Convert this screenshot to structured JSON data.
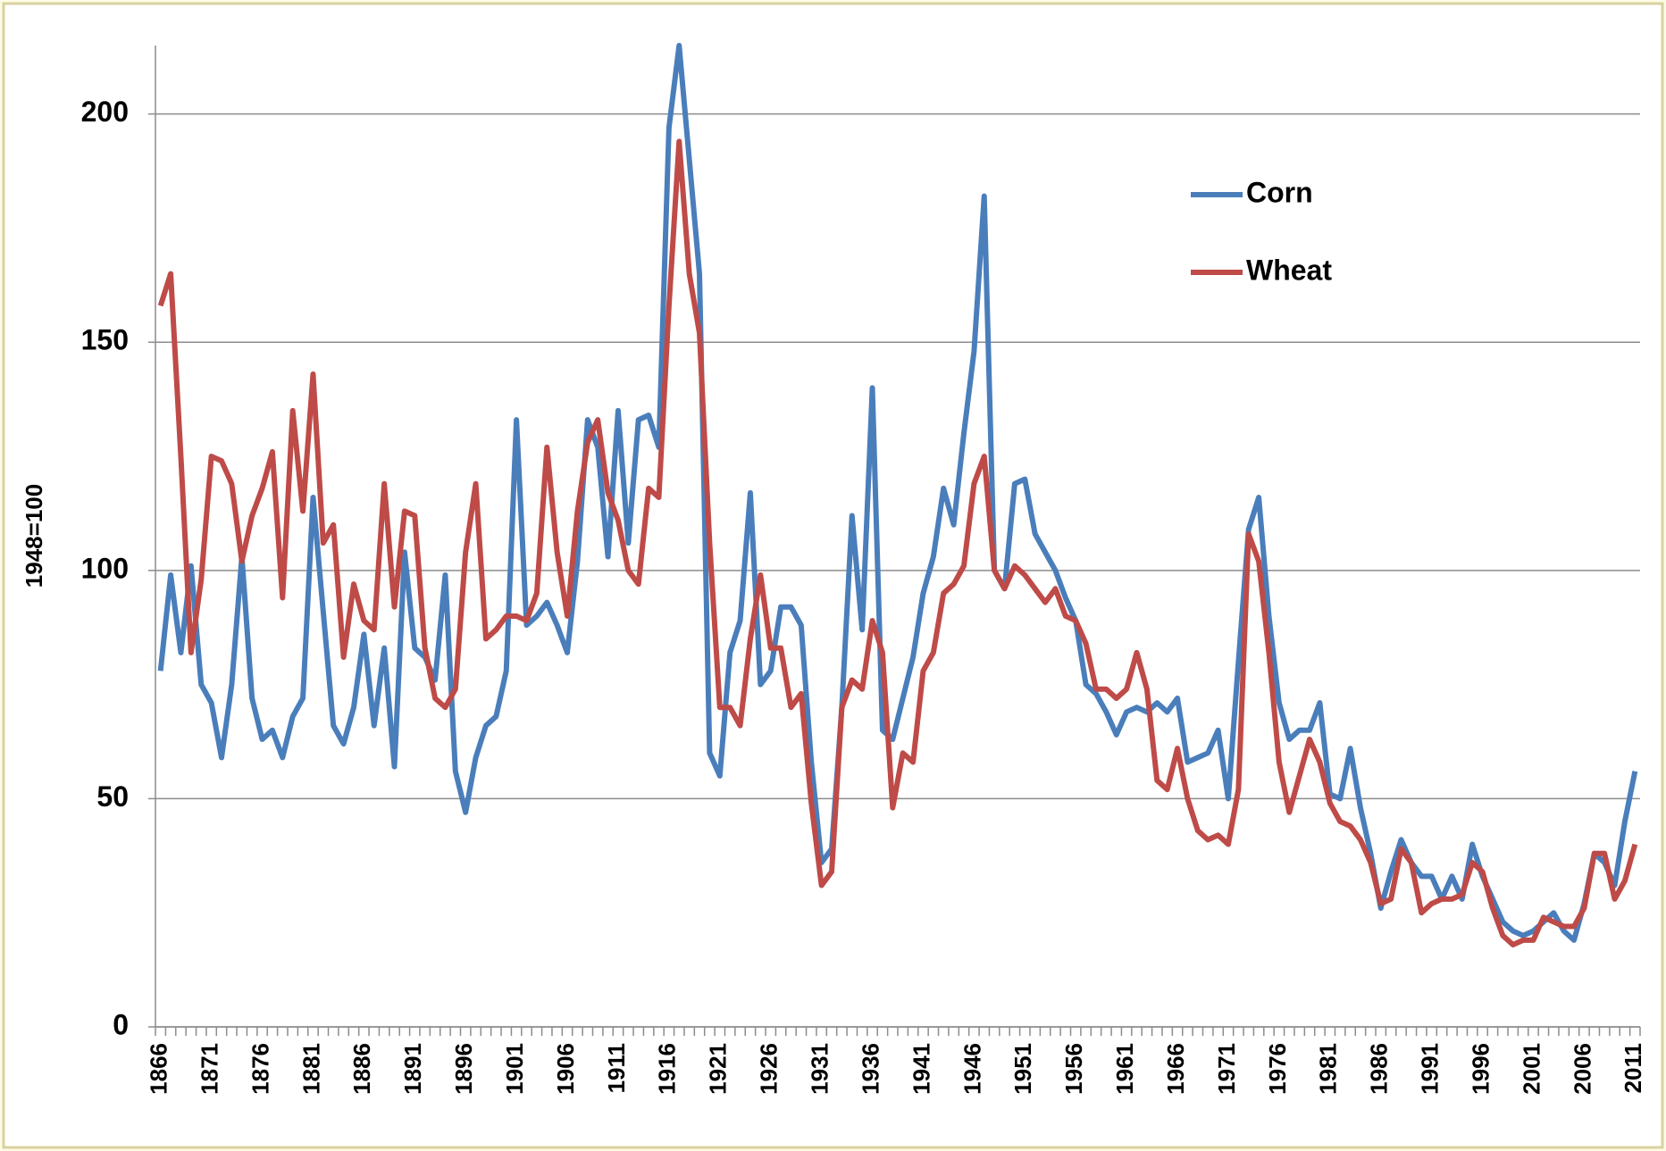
{
  "chart_data": {
    "type": "line",
    "y_label": "1948=100",
    "categories": [
      "1866",
      null,
      null,
      null,
      null,
      "1871",
      null,
      null,
      null,
      null,
      "1876",
      null,
      null,
      null,
      null,
      "1881",
      null,
      null,
      null,
      null,
      "1886",
      null,
      null,
      null,
      null,
      "1891",
      null,
      null,
      null,
      null,
      "1896",
      null,
      null,
      null,
      null,
      "1901",
      null,
      null,
      null,
      null,
      "1906",
      null,
      null,
      null,
      null,
      "1911",
      null,
      null,
      null,
      null,
      "1916",
      null,
      null,
      null,
      null,
      "1921",
      null,
      null,
      null,
      null,
      "1926",
      null,
      null,
      null,
      null,
      "1931",
      null,
      null,
      null,
      null,
      "1936",
      null,
      null,
      null,
      null,
      "1941",
      null,
      null,
      null,
      null,
      "1946",
      null,
      null,
      null,
      null,
      "1951",
      null,
      null,
      null,
      null,
      "1956",
      null,
      null,
      null,
      null,
      "1961",
      null,
      null,
      null,
      null,
      "1966",
      null,
      null,
      null,
      null,
      "1971",
      null,
      null,
      null,
      null,
      "1976",
      null,
      null,
      null,
      null,
      "1981",
      null,
      null,
      null,
      null,
      "1986",
      null,
      null,
      null,
      null,
      "1991",
      null,
      null,
      null,
      null,
      "1996",
      null,
      null,
      null,
      null,
      "2001",
      null,
      null,
      null,
      null,
      "2006",
      null,
      null,
      null,
      null,
      "2011"
    ],
    "series": [
      {
        "name": "Corn",
        "color": "#4a7ebb",
        "values": [
          78,
          99,
          82,
          101,
          75,
          71,
          59,
          75,
          103,
          72,
          63,
          65,
          59,
          68,
          72,
          116,
          91,
          66,
          62,
          70,
          86,
          66,
          83,
          57,
          104,
          83,
          81,
          76,
          99,
          56,
          47,
          59,
          66,
          68,
          78,
          133,
          88,
          90,
          93,
          88,
          82,
          102,
          133,
          127,
          103,
          135,
          106,
          133,
          134,
          127,
          197,
          215,
          190,
          165,
          60,
          55,
          82,
          89,
          117,
          75,
          78,
          92,
          92,
          88,
          58,
          36,
          39,
          70,
          112,
          87,
          140,
          65,
          63,
          72,
          81,
          95,
          103,
          118,
          110,
          130,
          148,
          182,
          100,
          96,
          119,
          120,
          108,
          104,
          100,
          94,
          89,
          75,
          73,
          69,
          64,
          69,
          70,
          69,
          71,
          69,
          72,
          58,
          59,
          60,
          65,
          50,
          80,
          109,
          116,
          90,
          71,
          63,
          65,
          65,
          71,
          51,
          50,
          61,
          48,
          38,
          26,
          34,
          41,
          36,
          33,
          33,
          28,
          33,
          28,
          40,
          33,
          28,
          23,
          21,
          20,
          21,
          23,
          25,
          21,
          19,
          27,
          38,
          36,
          31,
          45,
          56
        ]
      },
      {
        "name": "Wheat",
        "color": "#be4b48",
        "values": [
          158,
          165,
          125,
          82,
          98,
          125,
          124,
          119,
          102,
          112,
          118,
          126,
          94,
          135,
          113,
          143,
          106,
          110,
          81,
          97,
          89,
          87,
          119,
          92,
          113,
          112,
          83,
          72,
          70,
          74,
          104,
          119,
          85,
          87,
          90,
          90,
          89,
          95,
          127,
          104,
          90,
          113,
          128,
          133,
          117,
          111,
          100,
          97,
          118,
          116,
          158,
          194,
          165,
          152,
          106,
          70,
          70,
          66,
          85,
          99,
          83,
          83,
          70,
          73,
          49,
          31,
          34,
          70,
          76,
          74,
          89,
          82,
          48,
          60,
          58,
          78,
          82,
          95,
          97,
          101,
          119,
          125,
          100,
          96,
          101,
          99,
          96,
          93,
          96,
          90,
          89,
          84,
          74,
          74,
          72,
          74,
          82,
          74,
          54,
          52,
          61,
          50,
          43,
          41,
          42,
          40,
          52,
          108,
          102,
          82,
          58,
          47,
          55,
          63,
          58,
          49,
          45,
          44,
          41,
          36,
          27,
          28,
          39,
          36,
          25,
          27,
          28,
          28,
          29,
          36,
          34,
          26,
          20,
          18,
          19,
          19,
          24,
          23,
          22,
          22,
          26,
          38,
          38,
          28,
          32,
          40
        ]
      }
    ],
    "ylim": [
      0,
      215
    ],
    "yticks": [
      0,
      50,
      100,
      150,
      200
    ],
    "grid": true,
    "legend": "upper right"
  }
}
